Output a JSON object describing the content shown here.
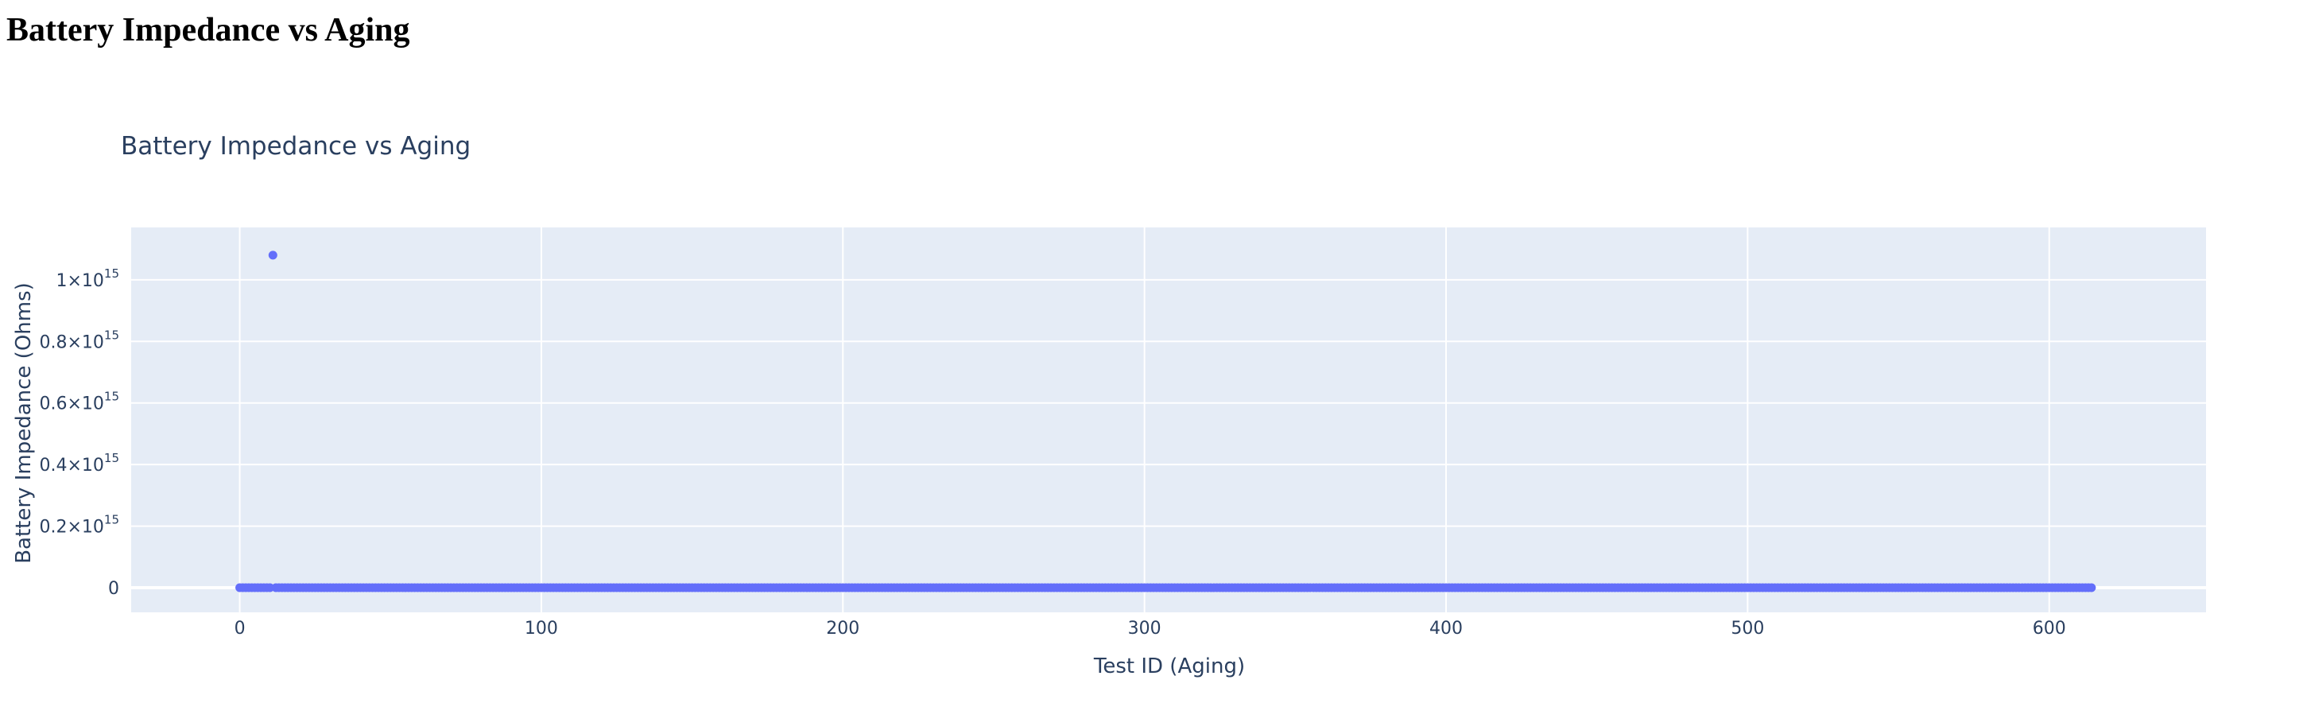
{
  "page": {
    "heading": "Battery Impedance vs Aging"
  },
  "chart_data": {
    "type": "scatter",
    "title": "Battery Impedance vs Aging",
    "xlabel": "Test ID (Aging)",
    "ylabel": "Battery Impedance (Ohms)",
    "xlim": [
      -36,
      652
    ],
    "ylim": [
      -80000000000000.0,
      1170000000000000.0
    ],
    "x_ticks": [
      {
        "value": 0,
        "label": "0"
      },
      {
        "value": 100,
        "label": "100"
      },
      {
        "value": 200,
        "label": "200"
      },
      {
        "value": 300,
        "label": "300"
      },
      {
        "value": 400,
        "label": "400"
      },
      {
        "value": 500,
        "label": "500"
      },
      {
        "value": 600,
        "label": "600"
      }
    ],
    "y_ticks": [
      {
        "value": 0,
        "mantissa": "0",
        "exp": ""
      },
      {
        "value": 200000000000000.0,
        "mantissa": "0.2×10",
        "exp": "15"
      },
      {
        "value": 400000000000000.0,
        "mantissa": "0.4×10",
        "exp": "15"
      },
      {
        "value": 600000000000000.0,
        "mantissa": "0.6×10",
        "exp": "15"
      },
      {
        "value": 800000000000000.0,
        "mantissa": "0.8×10",
        "exp": "15"
      },
      {
        "value": 1000000000000000.0,
        "mantissa": "1×10",
        "exp": "15"
      }
    ],
    "grid": true,
    "marker_color": "#636efa",
    "plot_bgcolor": "#e5ecf6",
    "series": [
      {
        "x_start": 0,
        "x_end": 614,
        "x_step": 1,
        "baseline_y": 0,
        "outliers": [
          {
            "x": 11,
            "y": 1080000000000000.0
          }
        ]
      }
    ]
  }
}
